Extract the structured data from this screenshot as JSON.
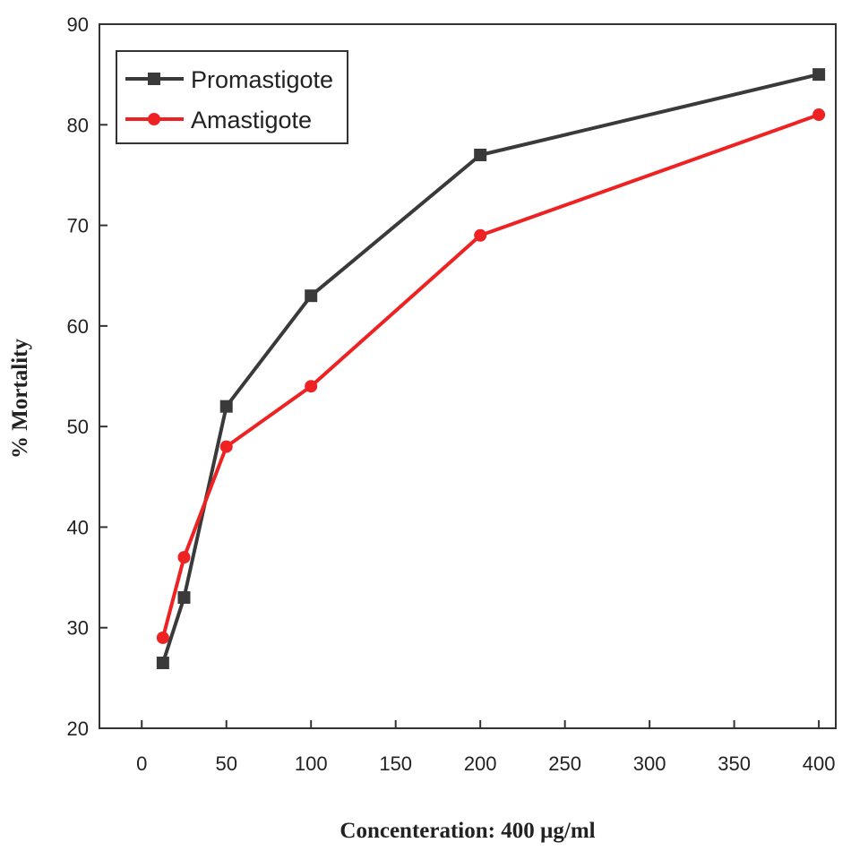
{
  "chart_data": {
    "type": "line",
    "xlabel": "Concenteration: 400 µg/ml",
    "ylabel": "% Mortality",
    "xlim": [
      -25,
      410
    ],
    "ylim": [
      20,
      90
    ],
    "xticks": [
      0,
      50,
      100,
      150,
      200,
      250,
      300,
      350,
      400
    ],
    "yticks": [
      20,
      30,
      40,
      50,
      60,
      70,
      80,
      90
    ],
    "grid": false,
    "legend_position": "top-left",
    "series": [
      {
        "name": "Promastigote",
        "color": "#3a3a3a",
        "marker": "square",
        "x": [
          12.5,
          25,
          50,
          100,
          200,
          400
        ],
        "y": [
          26.5,
          33,
          52,
          63,
          77,
          85
        ]
      },
      {
        "name": "Amastigote",
        "color": "#ee2222",
        "marker": "circle",
        "x": [
          12.5,
          25,
          50,
          100,
          200,
          400
        ],
        "y": [
          29,
          37,
          48,
          54,
          69,
          81
        ]
      }
    ]
  }
}
